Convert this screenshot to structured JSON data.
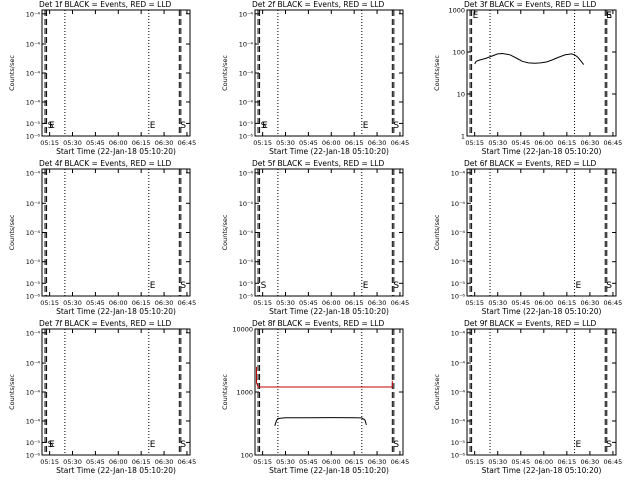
{
  "figure": {
    "x_label": "Start Time (22-Jan-18 05:10:20)",
    "y_label": "Counts/sec"
  },
  "chart_data": [
    {
      "type": "line",
      "title": "Det 1f BLACK = Events, RED = LLD",
      "xlim": [
        "05:10",
        "06:47"
      ],
      "x_ticks": [
        "05:15",
        "05:30",
        "05:45",
        "06:00",
        "06:15",
        "06:30",
        "06:45"
      ],
      "ylim": [
        "1e-6",
        "1e-4"
      ],
      "y_ticks": [
        {
          "v": "1e-4",
          "l": "10^-4"
        },
        {
          "v": "1e-4",
          "l": "10^-4"
        },
        {
          "v": "1e-4",
          "l": "10^-4"
        },
        {
          "v": "1e-4",
          "l": "10^-4"
        },
        {
          "v": "1e-5",
          "l": "10^-5"
        },
        {
          "v": "1e-6",
          "l": "10^-6"
        }
      ],
      "y_tick_labels": [
        "10⁻⁴",
        "10⁻⁴",
        "10⁻⁴",
        "10⁻⁴",
        "10⁻⁵",
        "10⁻⁶"
      ],
      "dotted_lines": [
        "05:25",
        "06:20"
      ],
      "dashed_lines": [
        "05:12",
        "05:13",
        "06:40",
        "06:41"
      ],
      "markers": [
        {
          "x": "05:13",
          "label": "S"
        },
        {
          "x": "05:14",
          "label": "E"
        },
        {
          "x": "06:20",
          "label": "E"
        },
        {
          "x": "06:40",
          "label": "S"
        }
      ],
      "series": []
    },
    {
      "type": "line",
      "title": "Det 2f BLACK = Events, RED = LLD",
      "xlim": [
        "05:10",
        "06:47"
      ],
      "x_ticks": [
        "05:15",
        "05:30",
        "05:45",
        "06:00",
        "06:15",
        "06:30",
        "06:45"
      ],
      "y_tick_labels": [
        "10⁻⁴",
        "10⁻⁴",
        "10⁻⁴",
        "10⁻⁴",
        "10⁻⁵",
        "10⁻⁶"
      ],
      "dotted_lines": [
        "05:25",
        "06:20"
      ],
      "dashed_lines": [
        "05:12",
        "05:13",
        "06:40",
        "06:41"
      ],
      "markers": [
        {
          "x": "05:13",
          "label": "S"
        },
        {
          "x": "05:14",
          "label": "E"
        },
        {
          "x": "06:20",
          "label": "E"
        },
        {
          "x": "06:40",
          "label": "S"
        }
      ],
      "series": []
    },
    {
      "type": "line",
      "title": "Det 3f BLACK = Events, RED = LLD",
      "xlim": [
        "05:10",
        "06:47"
      ],
      "x_ticks": [
        "05:15",
        "05:30",
        "05:45",
        "06:00",
        "06:15",
        "06:30",
        "06:45"
      ],
      "y_scale": "log",
      "ylim": [
        1,
        1000
      ],
      "y_tick_labels": [
        "1000",
        "100",
        "10",
        "1"
      ],
      "dotted_lines": [
        "05:25",
        "06:20"
      ],
      "dashed_lines": [
        "05:12",
        "05:13",
        "06:40",
        "06:41"
      ],
      "markers": [
        {
          "x": "05:13",
          "label": "E"
        },
        {
          "x": "06:40",
          "label": "E"
        },
        {
          "x": "06:40",
          "label": "S"
        }
      ],
      "series": [
        {
          "color": "#000000",
          "x": [
            "05:15",
            "05:16",
            "05:18",
            "05:22",
            "05:27",
            "05:30",
            "05:33",
            "05:38",
            "05:42",
            "05:46",
            "05:50",
            "05:54",
            "05:58",
            "06:02",
            "06:06",
            "06:10",
            "06:14",
            "06:18",
            "06:20",
            "06:22",
            "06:24",
            "06:26"
          ],
          "y": [
            52,
            60,
            64,
            70,
            82,
            90,
            92,
            86,
            72,
            60,
            55,
            54,
            55,
            58,
            66,
            76,
            86,
            90,
            86,
            76,
            62,
            50
          ]
        }
      ]
    },
    {
      "type": "line",
      "title": "Det 4f BLACK = Events, RED = LLD",
      "xlim": [
        "05:10",
        "06:47"
      ],
      "x_ticks": [
        "05:15",
        "05:30",
        "05:45",
        "06:00",
        "06:15",
        "06:30",
        "06:45"
      ],
      "y_tick_labels": [
        "10⁻⁴",
        "10⁻⁴",
        "10⁻⁴",
        "10⁻⁴",
        "10⁻⁵",
        "10⁻⁶"
      ],
      "dotted_lines": [
        "05:25",
        "06:20"
      ],
      "dashed_lines": [
        "05:12",
        "05:13",
        "06:40",
        "06:41"
      ],
      "markers": [
        {
          "x": "06:20",
          "label": "E"
        },
        {
          "x": "06:40",
          "label": "S"
        }
      ],
      "series": []
    },
    {
      "type": "line",
      "title": "Det 5f BLACK = Events, RED = LLD",
      "xlim": [
        "05:10",
        "06:47"
      ],
      "x_ticks": [
        "05:15",
        "05:30",
        "05:45",
        "06:00",
        "06:15",
        "06:30",
        "06:45"
      ],
      "y_tick_labels": [
        "10⁻⁴",
        "10⁻⁴",
        "10⁻⁴",
        "10⁻⁴",
        "10⁻⁵",
        "10⁻⁶"
      ],
      "dotted_lines": [
        "05:25",
        "06:20"
      ],
      "dashed_lines": [
        "05:12",
        "05:13",
        "06:40",
        "06:41"
      ],
      "markers": [
        {
          "x": "05:13",
          "label": "S"
        },
        {
          "x": "06:20",
          "label": "E"
        },
        {
          "x": "06:40",
          "label": "S"
        }
      ],
      "series": []
    },
    {
      "type": "line",
      "title": "Det 6f BLACK = Events, RED = LLD",
      "xlim": [
        "05:10",
        "06:47"
      ],
      "x_ticks": [
        "05:15",
        "05:30",
        "05:45",
        "06:00",
        "06:15",
        "06:30",
        "06:45"
      ],
      "y_tick_labels": [
        "10⁻⁴",
        "10⁻⁴",
        "10⁻⁴",
        "10⁻⁴",
        "10⁻⁵",
        "10⁻⁶"
      ],
      "dotted_lines": [
        "05:25",
        "06:20"
      ],
      "dashed_lines": [
        "05:12",
        "05:13",
        "06:40",
        "06:41"
      ],
      "markers": [
        {
          "x": "06:20",
          "label": "E"
        },
        {
          "x": "06:40",
          "label": "S"
        }
      ],
      "series": []
    },
    {
      "type": "line",
      "title": "Det 7f BLACK = Events, RED = LLD",
      "xlim": [
        "05:10",
        "06:47"
      ],
      "x_ticks": [
        "05:15",
        "05:30",
        "05:45",
        "06:00",
        "06:15",
        "06:30",
        "06:45"
      ],
      "y_tick_labels": [
        "10⁻⁴",
        "10⁻⁴",
        "10⁻⁴",
        "10⁻⁴",
        "10⁻⁵",
        "10⁻⁶"
      ],
      "dotted_lines": [
        "05:25",
        "06:20"
      ],
      "dashed_lines": [
        "05:12",
        "05:13",
        "06:40",
        "06:41"
      ],
      "markers": [
        {
          "x": "05:13",
          "label": "S"
        },
        {
          "x": "05:14",
          "label": "E"
        },
        {
          "x": "06:20",
          "label": "E"
        },
        {
          "x": "06:40",
          "label": "S"
        }
      ],
      "series": []
    },
    {
      "type": "line",
      "title": "Det 8f BLACK = Events, RED = LLD",
      "xlim": [
        "05:10",
        "06:47"
      ],
      "x_ticks": [
        "05:15",
        "05:30",
        "05:45",
        "06:00",
        "06:15",
        "06:30",
        "06:45"
      ],
      "y_scale": "log",
      "ylim": [
        100,
        10000
      ],
      "y_tick_labels": [
        "10000",
        "1000",
        "100"
      ],
      "dotted_lines": [
        "05:25",
        "06:20"
      ],
      "dashed_lines": [
        "05:12",
        "05:13",
        "06:40",
        "06:41"
      ],
      "markers": [
        {
          "x": "06:40",
          "label": "S"
        }
      ],
      "series": [
        {
          "color": "#c00000",
          "x": [
            "05:11",
            "05:11",
            "05:12",
            "05:15",
            "05:30",
            "05:45",
            "06:00",
            "06:15",
            "06:30",
            "06:40",
            "06:40"
          ],
          "y": [
            2500,
            1400,
            1200,
            1200,
            1200,
            1200,
            1200,
            1200,
            1200,
            1200,
            1500
          ]
        },
        {
          "color": "#000000",
          "x": [
            "05:23",
            "05:24",
            "05:25",
            "05:30",
            "05:45",
            "06:00",
            "06:15",
            "06:20",
            "06:22",
            "06:23"
          ],
          "y": [
            290,
            350,
            380,
            390,
            390,
            392,
            390,
            388,
            360,
            300
          ]
        }
      ]
    },
    {
      "type": "line",
      "title": "Det 9f BLACK = Events, RED = LLD",
      "xlim": [
        "05:10",
        "06:47"
      ],
      "x_ticks": [
        "05:15",
        "05:30",
        "05:45",
        "06:00",
        "06:15",
        "06:30",
        "06:45"
      ],
      "y_tick_labels": [
        "10⁻⁴",
        "10⁻⁴",
        "10⁻⁴",
        "10⁻⁴",
        "10⁻⁵",
        "10⁻⁶"
      ],
      "dotted_lines": [
        "05:25",
        "06:20"
      ],
      "dashed_lines": [
        "05:12",
        "05:13",
        "06:40",
        "06:41"
      ],
      "markers": [
        {
          "x": "06:20",
          "label": "E"
        },
        {
          "x": "06:40",
          "label": "S"
        }
      ],
      "series": []
    }
  ]
}
